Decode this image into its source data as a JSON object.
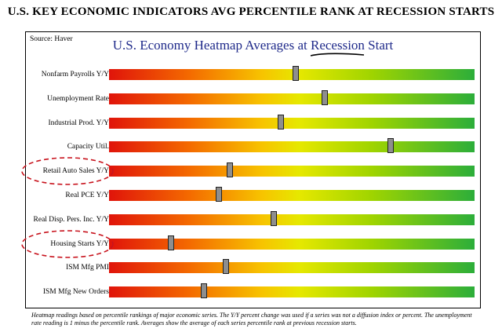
{
  "page": {
    "title": "U.S. KEY ECONOMIC INDICATORS AVG PERCENTILE RANK AT RECESSION STARTS",
    "source": "Source: Haver",
    "footnote": "Heatmap readings based on percentile rankings of major economic series. The Y/Y percent change was used if a series was not a diffusion index or percent. The unemployment rate reading is 1 minus the percentile rank. Averages show the average of each series percentile rank at previous recession starts."
  },
  "chart_data": {
    "type": "heatmap",
    "title_prefix": "U.S. Economy Heatmap Averages at ",
    "title_emphasis": "Recession",
    "title_suffix": " Start",
    "scale": [
      0,
      100
    ],
    "colors": {
      "low": "#e0140a",
      "mid": "#e6e800",
      "high": "#2cae3a",
      "marker": "#8e8e8e",
      "title": "#1f2a8a",
      "circle": "#c8141e"
    },
    "rows": [
      {
        "label": "Nonfarm Payrolls Y/Y",
        "value": 51,
        "circled": false
      },
      {
        "label": "Unemployment Rate",
        "value": 59,
        "circled": false
      },
      {
        "label": "Industrial Prod. Y/Y",
        "value": 47,
        "circled": false
      },
      {
        "label": "Capacity Util.",
        "value": 77,
        "circled": false
      },
      {
        "label": "Retail Auto Sales Y/Y",
        "value": 33,
        "circled": true
      },
      {
        "label": "Real PCE Y/Y",
        "value": 30,
        "circled": false
      },
      {
        "label": "Real Disp. Pers. Inc. Y/Y",
        "value": 45,
        "circled": false
      },
      {
        "label": "Housing Starts Y/Y",
        "value": 17,
        "circled": true
      },
      {
        "label": "ISM Mfg PMI",
        "value": 32,
        "circled": false
      },
      {
        "label": "ISM Mfg New Orders",
        "value": 26,
        "circled": false
      }
    ]
  }
}
